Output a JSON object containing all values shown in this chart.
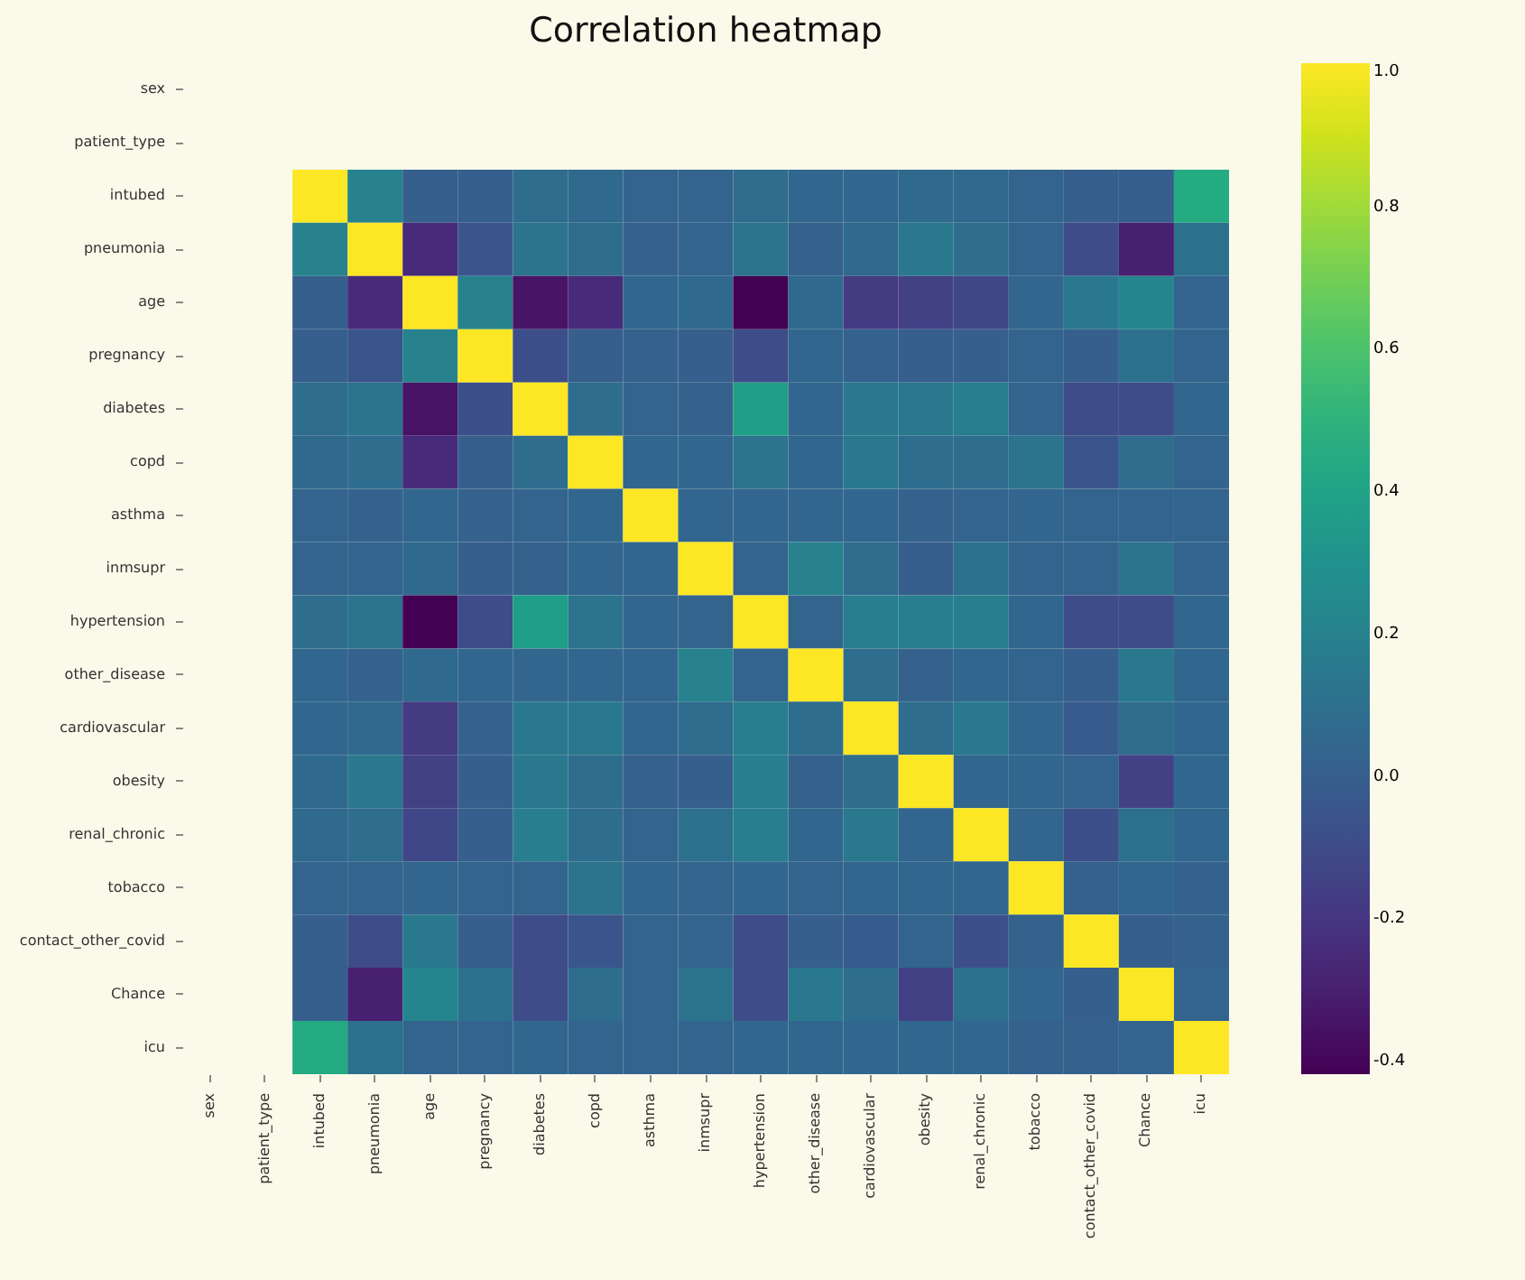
{
  "chart_data": {
    "type": "heatmap",
    "title": "Correlation heatmap",
    "categories": [
      "sex",
      "patient_type",
      "intubed",
      "pneumonia",
      "age",
      "pregnancy",
      "diabetes",
      "copd",
      "asthma",
      "inmsupr",
      "hypertension",
      "other_disease",
      "cardiovascular",
      "obesity",
      "renal_chronic",
      "tobacco",
      "contact_other_covid",
      "Chance",
      "icu"
    ],
    "y_categories": [
      "sex",
      "patient_type",
      "intubed",
      "pneumonia",
      "age",
      "pregnancy",
      "diabetes",
      "copd",
      "asthma",
      "inmsupr",
      "hypertension",
      "other_disease",
      "cardiovascular",
      "obesity",
      "renal_chronic",
      "tobacco",
      "contact_other_covid",
      "Chance",
      "icu"
    ],
    "cells": [
      [
        null,
        null,
        null,
        null,
        null,
        null,
        null,
        null,
        null,
        null,
        null,
        null,
        null,
        null,
        null,
        null,
        null,
        null,
        null
      ],
      [
        null,
        null,
        null,
        null,
        null,
        null,
        null,
        null,
        null,
        null,
        null,
        null,
        null,
        null,
        null,
        null,
        null,
        null,
        null
      ],
      [
        null,
        null,
        1,
        0.2,
        0,
        0,
        0.08,
        0.06,
        0.03,
        0.03,
        0.08,
        0.05,
        0.05,
        0.06,
        0.06,
        0.03,
        0,
        0,
        0.45
      ],
      [
        null,
        null,
        0.2,
        1,
        -0.25,
        -0.05,
        0.12,
        0.08,
        0.02,
        0.03,
        0.12,
        0.02,
        0.06,
        0.15,
        0.08,
        0.03,
        -0.1,
        -0.3,
        0.1
      ],
      [
        null,
        null,
        0,
        -0.25,
        1,
        0.2,
        -0.35,
        -0.25,
        0.05,
        0.06,
        -0.42,
        0.06,
        -0.18,
        -0.15,
        -0.12,
        0.04,
        0.15,
        0.22,
        0.03
      ],
      [
        null,
        null,
        0,
        -0.05,
        0.2,
        1,
        -0.08,
        0,
        0.02,
        0,
        -0.1,
        0.05,
        0.02,
        0,
        0,
        0.03,
        0,
        0.1,
        0.03
      ],
      [
        null,
        null,
        0.08,
        0.12,
        -0.35,
        -0.08,
        1,
        0.08,
        0.03,
        0.02,
        0.38,
        0.04,
        0.15,
        0.15,
        0.18,
        0.03,
        -0.1,
        -0.1,
        0.05
      ],
      [
        null,
        null,
        0.06,
        0.08,
        -0.25,
        0,
        0.08,
        1,
        0.05,
        0.04,
        0.12,
        0.05,
        0.15,
        0.08,
        0.08,
        0.12,
        -0.05,
        0.08,
        0.03
      ],
      [
        null,
        null,
        0.03,
        0.02,
        0.05,
        0.02,
        0.03,
        0.05,
        1,
        0.04,
        0.04,
        0.04,
        0.05,
        0.02,
        0.03,
        0.04,
        0.03,
        0.03,
        0.03
      ],
      [
        null,
        null,
        0.03,
        0.03,
        0.06,
        0,
        0.02,
        0.04,
        0.04,
        1,
        0.03,
        0.2,
        0.08,
        0,
        0.1,
        0.03,
        0.03,
        0.12,
        0.03
      ],
      [
        null,
        null,
        0.08,
        0.12,
        -0.42,
        -0.1,
        0.38,
        0.12,
        0.04,
        0.03,
        1,
        0.03,
        0.18,
        0.18,
        0.18,
        0.05,
        -0.1,
        -0.1,
        0.05
      ],
      [
        null,
        null,
        0.05,
        0.02,
        0.06,
        0.05,
        0.04,
        0.05,
        0.04,
        0.2,
        0.03,
        1,
        0.08,
        0.02,
        0.05,
        0.03,
        0,
        0.15,
        0.05
      ],
      [
        null,
        null,
        0.05,
        0.06,
        -0.18,
        0.02,
        0.15,
        0.15,
        0.05,
        0.08,
        0.18,
        0.08,
        1,
        0.08,
        0.15,
        0.04,
        -0.02,
        0.08,
        0.05
      ],
      [
        null,
        null,
        0.06,
        0.15,
        -0.15,
        0,
        0.15,
        0.08,
        0.02,
        0,
        0.18,
        0.02,
        0.08,
        1,
        0.04,
        0.05,
        0.03,
        -0.15,
        0.05
      ],
      [
        null,
        null,
        0.06,
        0.08,
        -0.12,
        0,
        0.18,
        0.08,
        0.03,
        0.1,
        0.18,
        0.05,
        0.15,
        0.04,
        1,
        0.04,
        -0.08,
        0.1,
        0.05
      ],
      [
        null,
        null,
        0.03,
        0.03,
        0.04,
        0.03,
        0.03,
        0.12,
        0.04,
        0.03,
        0.05,
        0.03,
        0.04,
        0.05,
        0.04,
        1,
        0.02,
        0.05,
        0.02
      ],
      [
        null,
        null,
        0,
        -0.1,
        0.15,
        0,
        -0.1,
        -0.05,
        0.03,
        0.03,
        -0.1,
        0,
        -0.02,
        0.03,
        -0.08,
        0.02,
        1,
        0,
        0.02
      ],
      [
        null,
        null,
        0,
        -0.3,
        0.22,
        0.1,
        -0.1,
        0.08,
        0.03,
        0.12,
        -0.1,
        0.15,
        0.08,
        -0.15,
        0.1,
        0.05,
        0,
        1,
        0.03
      ],
      [
        null,
        null,
        0.45,
        0.1,
        0.03,
        0.03,
        0.05,
        0.03,
        0.03,
        0.03,
        0.05,
        0.05,
        0.05,
        0.05,
        0.05,
        0.02,
        0.02,
        0.03,
        1
      ]
    ],
    "clim": [
      -0.42,
      1.0
    ],
    "cticks": [
      -0.4,
      -0.2,
      {
        "value": 0,
        "label": "0.0"
      },
      0.2,
      0.4,
      0.6,
      0.8,
      {
        "value": 1,
        "label": "1.0"
      }
    ]
  }
}
